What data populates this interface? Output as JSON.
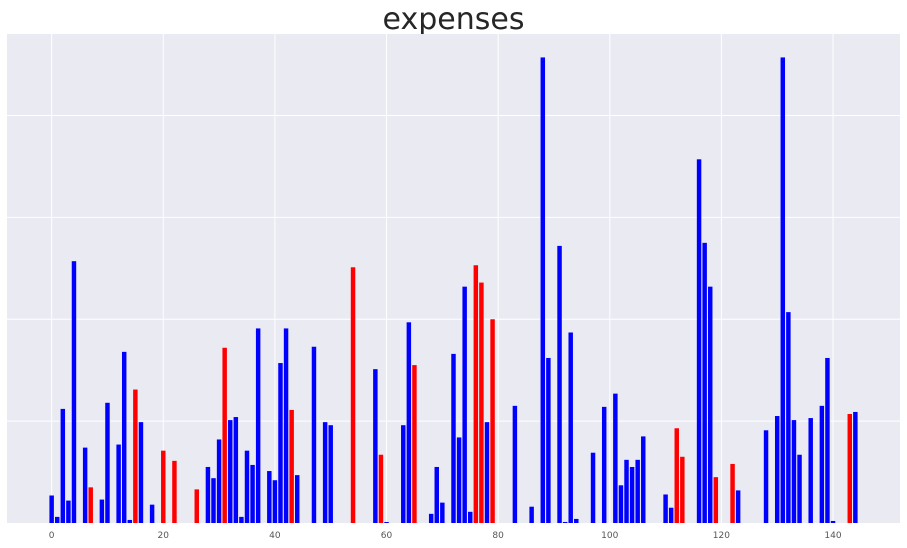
{
  "chart_data": {
    "type": "bar",
    "title": "expenses",
    "xlabel": "",
    "ylabel": "",
    "xlim": [
      -8,
      152
    ],
    "ylim": [
      0,
      480
    ],
    "x_ticks": [
      0,
      20,
      40,
      60,
      80,
      100,
      120,
      140
    ],
    "y_gridlines": [
      100,
      200,
      300,
      400
    ],
    "grid": true,
    "colors": {
      "blue": "#0000ff",
      "red": "#ff0000",
      "background": "#eaeaf2",
      "grid": "#ffffff"
    },
    "bars": [
      {
        "x": 0,
        "value": 27,
        "color": "blue"
      },
      {
        "x": 1,
        "value": 6,
        "color": "blue"
      },
      {
        "x": 2,
        "value": 112,
        "color": "blue"
      },
      {
        "x": 3,
        "value": 22,
        "color": "blue"
      },
      {
        "x": 4,
        "value": 257,
        "color": "blue"
      },
      {
        "x": 6,
        "value": 74,
        "color": "blue"
      },
      {
        "x": 7,
        "value": 35,
        "color": "red"
      },
      {
        "x": 9,
        "value": 23,
        "color": "blue"
      },
      {
        "x": 10,
        "value": 118,
        "color": "blue"
      },
      {
        "x": 12,
        "value": 77,
        "color": "blue"
      },
      {
        "x": 13,
        "value": 168,
        "color": "blue"
      },
      {
        "x": 14,
        "value": 3,
        "color": "blue"
      },
      {
        "x": 15,
        "value": 131,
        "color": "red"
      },
      {
        "x": 16,
        "value": 99,
        "color": "blue"
      },
      {
        "x": 18,
        "value": 18,
        "color": "blue"
      },
      {
        "x": 20,
        "value": 71,
        "color": "red"
      },
      {
        "x": 22,
        "value": 61,
        "color": "red"
      },
      {
        "x": 26,
        "value": 33,
        "color": "red"
      },
      {
        "x": 28,
        "value": 55,
        "color": "blue"
      },
      {
        "x": 29,
        "value": 44,
        "color": "blue"
      },
      {
        "x": 30,
        "value": 82,
        "color": "blue"
      },
      {
        "x": 31,
        "value": 172,
        "color": "red"
      },
      {
        "x": 32,
        "value": 101,
        "color": "blue"
      },
      {
        "x": 33,
        "value": 104,
        "color": "blue"
      },
      {
        "x": 34,
        "value": 6,
        "color": "blue"
      },
      {
        "x": 35,
        "value": 71,
        "color": "blue"
      },
      {
        "x": 36,
        "value": 57,
        "color": "blue"
      },
      {
        "x": 37,
        "value": 191,
        "color": "blue"
      },
      {
        "x": 39,
        "value": 51,
        "color": "blue"
      },
      {
        "x": 40,
        "value": 42,
        "color": "blue"
      },
      {
        "x": 41,
        "value": 157,
        "color": "blue"
      },
      {
        "x": 42,
        "value": 191,
        "color": "blue"
      },
      {
        "x": 43,
        "value": 111,
        "color": "red"
      },
      {
        "x": 44,
        "value": 47,
        "color": "blue"
      },
      {
        "x": 47,
        "value": 173,
        "color": "blue"
      },
      {
        "x": 49,
        "value": 99,
        "color": "blue"
      },
      {
        "x": 50,
        "value": 96,
        "color": "blue"
      },
      {
        "x": 54,
        "value": 251,
        "color": "red"
      },
      {
        "x": 58,
        "value": 151,
        "color": "blue"
      },
      {
        "x": 59,
        "value": 67,
        "color": "red"
      },
      {
        "x": 60,
        "value": 1,
        "color": "blue"
      },
      {
        "x": 63,
        "value": 96,
        "color": "blue"
      },
      {
        "x": 64,
        "value": 197,
        "color": "blue"
      },
      {
        "x": 65,
        "value": 155,
        "color": "red"
      },
      {
        "x": 68,
        "value": 9,
        "color": "blue"
      },
      {
        "x": 69,
        "value": 55,
        "color": "blue"
      },
      {
        "x": 70,
        "value": 20,
        "color": "blue"
      },
      {
        "x": 72,
        "value": 166,
        "color": "blue"
      },
      {
        "x": 73,
        "value": 84,
        "color": "blue"
      },
      {
        "x": 74,
        "value": 232,
        "color": "blue"
      },
      {
        "x": 75,
        "value": 11,
        "color": "blue"
      },
      {
        "x": 76,
        "value": 253,
        "color": "red"
      },
      {
        "x": 77,
        "value": 236,
        "color": "red"
      },
      {
        "x": 78,
        "value": 99,
        "color": "blue"
      },
      {
        "x": 79,
        "value": 200,
        "color": "red"
      },
      {
        "x": 83,
        "value": 115,
        "color": "blue"
      },
      {
        "x": 86,
        "value": 16,
        "color": "blue"
      },
      {
        "x": 88,
        "value": 457,
        "color": "blue"
      },
      {
        "x": 89,
        "value": 162,
        "color": "blue"
      },
      {
        "x": 91,
        "value": 272,
        "color": "blue"
      },
      {
        "x": 92,
        "value": 1,
        "color": "blue"
      },
      {
        "x": 93,
        "value": 187,
        "color": "blue"
      },
      {
        "x": 94,
        "value": 4,
        "color": "blue"
      },
      {
        "x": 97,
        "value": 69,
        "color": "blue"
      },
      {
        "x": 99,
        "value": 114,
        "color": "blue"
      },
      {
        "x": 101,
        "value": 127,
        "color": "blue"
      },
      {
        "x": 102,
        "value": 37,
        "color": "blue"
      },
      {
        "x": 103,
        "value": 62,
        "color": "blue"
      },
      {
        "x": 104,
        "value": 55,
        "color": "blue"
      },
      {
        "x": 105,
        "value": 62,
        "color": "blue"
      },
      {
        "x": 106,
        "value": 85,
        "color": "blue"
      },
      {
        "x": 110,
        "value": 28,
        "color": "blue"
      },
      {
        "x": 111,
        "value": 15,
        "color": "blue"
      },
      {
        "x": 112,
        "value": 93,
        "color": "red"
      },
      {
        "x": 113,
        "value": 65,
        "color": "red"
      },
      {
        "x": 116,
        "value": 357,
        "color": "blue"
      },
      {
        "x": 117,
        "value": 275,
        "color": "blue"
      },
      {
        "x": 118,
        "value": 232,
        "color": "blue"
      },
      {
        "x": 119,
        "value": 45,
        "color": "red"
      },
      {
        "x": 122,
        "value": 58,
        "color": "red"
      },
      {
        "x": 123,
        "value": 32,
        "color": "blue"
      },
      {
        "x": 128,
        "value": 91,
        "color": "blue"
      },
      {
        "x": 130,
        "value": 105,
        "color": "blue"
      },
      {
        "x": 131,
        "value": 457,
        "color": "blue"
      },
      {
        "x": 132,
        "value": 207,
        "color": "blue"
      },
      {
        "x": 133,
        "value": 101,
        "color": "blue"
      },
      {
        "x": 134,
        "value": 67,
        "color": "blue"
      },
      {
        "x": 136,
        "value": 103,
        "color": "blue"
      },
      {
        "x": 138,
        "value": 115,
        "color": "blue"
      },
      {
        "x": 139,
        "value": 162,
        "color": "blue"
      },
      {
        "x": 140,
        "value": 2,
        "color": "blue"
      },
      {
        "x": 143,
        "value": 107,
        "color": "red"
      },
      {
        "x": 144,
        "value": 109,
        "color": "blue"
      }
    ]
  }
}
